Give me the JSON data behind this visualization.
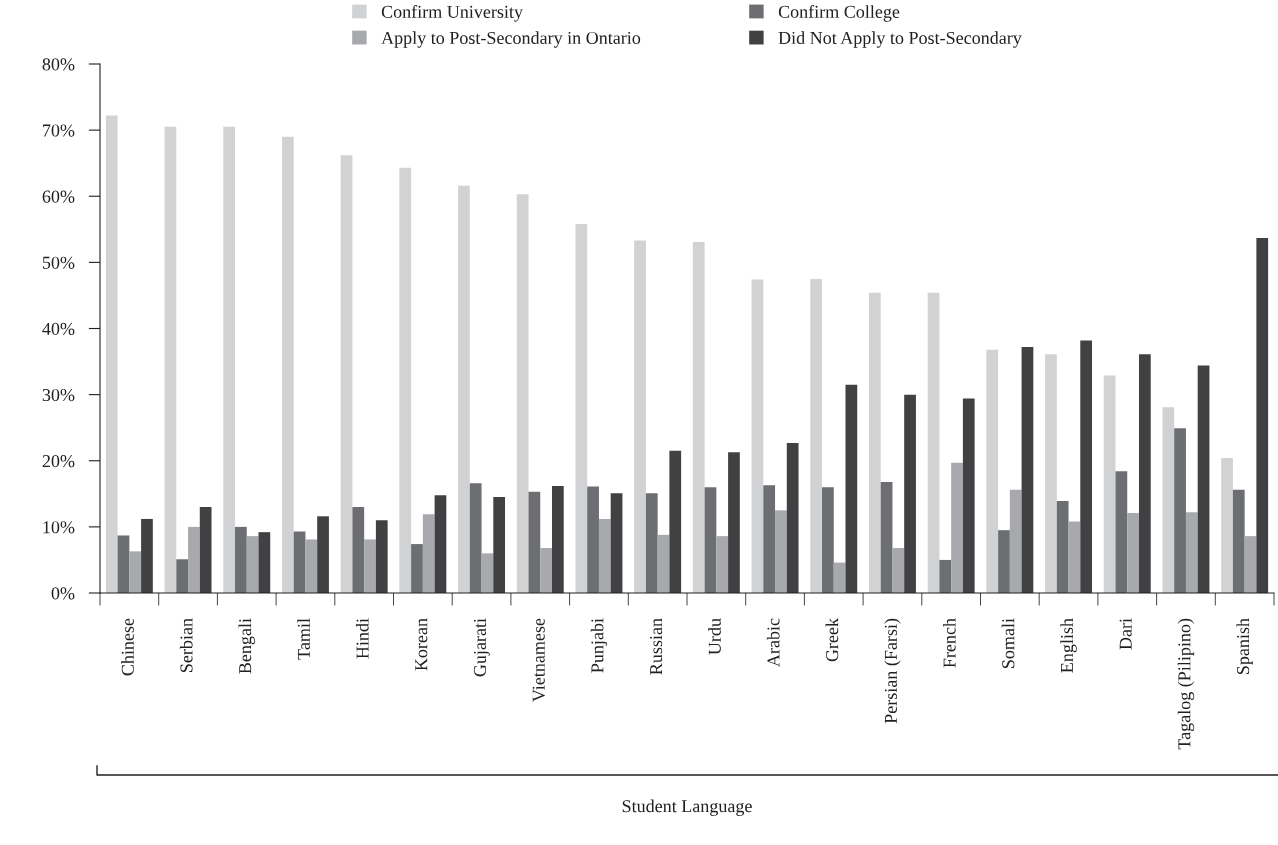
{
  "chart_data": {
    "type": "bar",
    "xlabel": "Student Language",
    "categories": [
      "Chinese",
      "Serbian",
      "Bengali",
      "Tamil",
      "Hindi",
      "Korean",
      "Gujarati",
      "Vietnamese",
      "Punjabi",
      "Russian",
      "Urdu",
      "Arabic",
      "Greek",
      "Persian (Farsi)",
      "French",
      "Somali",
      "English",
      "Dari",
      "Tagalog (Pilipino)",
      "Spanish"
    ],
    "series": [
      {
        "name": "Confirm University",
        "color": "#d1d2d4",
        "values": [
          72.2,
          70.5,
          70.5,
          69.0,
          66.2,
          64.3,
          61.6,
          60.3,
          55.8,
          53.3,
          53.1,
          47.4,
          47.5,
          45.4,
          45.4,
          36.8,
          36.1,
          32.9,
          28.1,
          20.4
        ]
      },
      {
        "name": "Confirm College",
        "color": "#6d6e71",
        "values": [
          8.7,
          5.1,
          10.0,
          9.3,
          13.0,
          7.4,
          16.6,
          15.3,
          16.1,
          15.1,
          16.0,
          16.3,
          16.0,
          16.8,
          5.0,
          9.5,
          13.9,
          18.4,
          24.9,
          15.6
        ]
      },
      {
        "name": "Apply to Post-Secondary in Ontario",
        "color": "#a7a9ac",
        "values": [
          6.3,
          10.0,
          8.6,
          8.1,
          8.1,
          11.9,
          6.0,
          6.8,
          11.2,
          8.8,
          8.6,
          12.5,
          4.6,
          6.8,
          19.7,
          15.6,
          10.8,
          12.1,
          12.2,
          8.6
        ]
      },
      {
        "name": "Did Not Apply to Post-Secondary",
        "color": "#414042",
        "values": [
          11.2,
          13.0,
          9.2,
          11.6,
          11.0,
          14.8,
          14.5,
          16.2,
          15.1,
          21.5,
          21.3,
          22.7,
          31.5,
          30.0,
          29.4,
          37.2,
          38.2,
          36.1,
          34.4,
          53.7
        ]
      }
    ],
    "ylim": [
      0,
      80
    ],
    "yticks": [
      {
        "value": 0,
        "label": "0%"
      },
      {
        "value": 10,
        "label": "10%"
      },
      {
        "value": 20,
        "label": "20%"
      },
      {
        "value": 30,
        "label": "30%"
      },
      {
        "value": 40,
        "label": "40%"
      },
      {
        "value": 50,
        "label": "50%"
      },
      {
        "value": 60,
        "label": "60%"
      },
      {
        "value": 70,
        "label": "70%"
      },
      {
        "value": 80,
        "label": "80%"
      }
    ],
    "legend": "top",
    "grid": false
  }
}
